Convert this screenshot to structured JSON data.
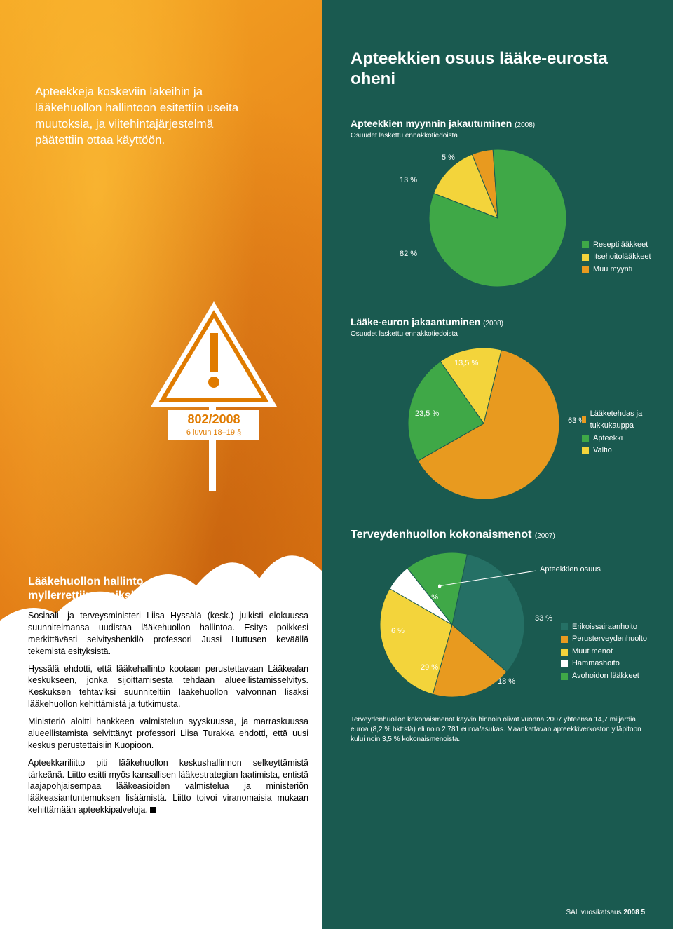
{
  "colors": {
    "dark_teal": "#1a5a50",
    "teal": "#257065",
    "green": "#3fa847",
    "yellow": "#f3d43b",
    "orange": "#e89a1f",
    "dark_orange": "#b56b12",
    "white": "#ffffff",
    "sign_orange": "#e07b00"
  },
  "left": {
    "intro": "Apteekkeja koskeviin lakeihin ja lääkehuollon hallintoon esitettiin useita muutoksia, ja viitehintajärjestelmä päätettiin ottaa käyttöön.",
    "sign": {
      "top_line": "802/2008",
      "bottom_line": "6 luvun 18–19 §"
    },
    "article": {
      "heading_l1": "Lääkehuollon hallinto",
      "heading_l2": "myllerrettiin uusiksi",
      "p1": "Sosiaali- ja terveysministeri Liisa Hyssälä (kesk.) julkisti elokuussa suunnitelmansa uudistaa lääkehuollon hallintoa. Esitys poikkesi merkittävästi selvityshenkilö professori Jussi Huttusen keväällä tekemistä esityksistä.",
      "p2": "Hyssälä ehdotti, että lääkehallinto kootaan perustettavaan Lääkealan keskukseen, jonka sijoittamisesta tehdään alueellistamisselvitys. Keskuksen tehtäviksi suunniteltiin lääkehuollon valvonnan lisäksi lääkehuollon kehittämistä ja tutkimusta.",
      "p3": "Ministeriö aloitti hankkeen valmistelun syyskuussa, ja marraskuussa alueellistamista selvittänyt professori Liisa Turakka ehdotti, että uusi keskus perustettaisiin Kuopioon.",
      "p4": "Apteekkariliitto piti lääkehuollon keskushallinnon selkeyttämistä tärkeänä. Liitto esitti myös kansallisen lääkestrategian laatimista, entistä laajapohjaisempaa lääkeasioiden valmistelua ja ministeriön lääkeasiantuntemuksen lisäämistä. Liitto toivoi viranomaisia mukaan kehittämään apteekkipalveluja."
    }
  },
  "right": {
    "main_title": "Apteekkien osuus lääke-eurosta oheni",
    "chart1": {
      "type": "pie",
      "title": "Apteekkien myynnin jakautuminen",
      "year": "(2008)",
      "subtitle": "Osuudet laskettu ennakkotiedoista",
      "slices": [
        {
          "label": "Reseptilääkkeet",
          "value": 82,
          "color": "#3fa847",
          "display": "82 %"
        },
        {
          "label": "Itsehoitolääkkeet",
          "value": 13,
          "color": "#f3d43b",
          "display": "13 %"
        },
        {
          "label": "Muu myynti",
          "value": 5,
          "color": "#e89a1f",
          "display": "5 %"
        }
      ]
    },
    "chart2": {
      "type": "pie",
      "title": "Lääke-euron jakaantuminen",
      "year": "(2008)",
      "subtitle": "Osuudet laskettu ennakkotiedoista",
      "slices": [
        {
          "label": "Lääketehdas ja tukkukauppa",
          "value": 63,
          "color": "#e89a1f",
          "display": "63 %"
        },
        {
          "label": "Apteekki",
          "value": 23.5,
          "color": "#3fa847",
          "display": "23,5 %"
        },
        {
          "label": "Valtio",
          "value": 13.5,
          "color": "#f3d43b",
          "display": "13,5 %"
        }
      ]
    },
    "chart3": {
      "type": "pie",
      "title": "Terveydenhuollon kokonaismenot",
      "year": "(2007)",
      "callout": "Apteekkien osuus",
      "slices": [
        {
          "label": "Erikoissairaanhoito",
          "value": 33,
          "color": "#257065",
          "display": "33 %"
        },
        {
          "label": "Perusterveydenhuolto",
          "value": 18,
          "color": "#e89a1f",
          "display": "18 %"
        },
        {
          "label": "Muut menot",
          "value": 29,
          "color": "#f3d43b",
          "display": "29 %"
        },
        {
          "label": "Hammashoito",
          "value": 6,
          "color": "#ffffff",
          "display": "6 %"
        },
        {
          "label": "Avohoidon lääkkeet",
          "value": 14,
          "color": "#3fa847",
          "display": "14 %"
        }
      ],
      "footnote": "Terveydenhuollon kokonaismenot käyvin hinnoin olivat vuonna 2007 yhteensä 14,7 miljardia euroa (8,2 % bkt:stä) eli noin 2 781 euroa/asukas. Maankattavan apteekkiverkoston ylläpitoon kului noin 3,5 % kokonaismenoista."
    },
    "footer": {
      "text": "SAL vuosikatsaus",
      "year": "2008",
      "page": "5"
    }
  }
}
